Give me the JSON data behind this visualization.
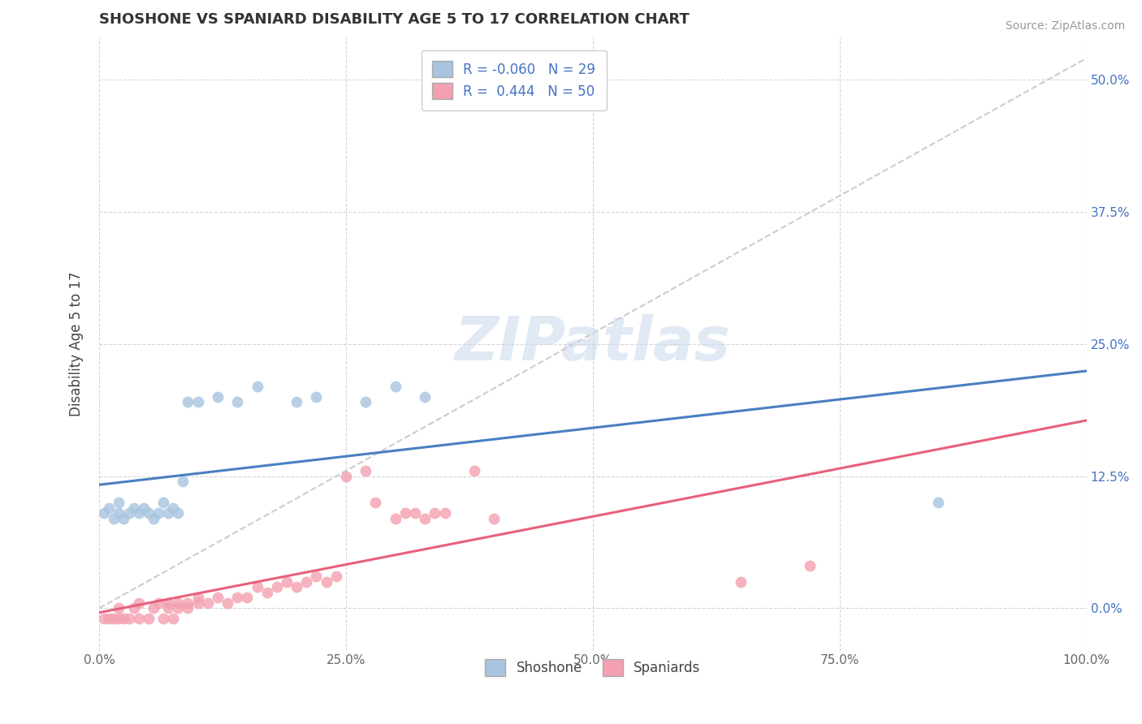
{
  "title": "SHOSHONE VS SPANIARD DISABILITY AGE 5 TO 17 CORRELATION CHART",
  "source_text": "Source: ZipAtlas.com",
  "ylabel": "Disability Age 5 to 17",
  "xlim": [
    0.0,
    1.0
  ],
  "ylim": [
    -0.04,
    0.54
  ],
  "xticks": [
    0.0,
    0.25,
    0.5,
    0.75,
    1.0
  ],
  "xticklabels": [
    "0.0%",
    "25.0%",
    "50.0%",
    "75.0%",
    "100.0%"
  ],
  "yticks": [
    0.0,
    0.125,
    0.25,
    0.375,
    0.5
  ],
  "yticklabels_right": [
    "0.0%",
    "12.5%",
    "25.0%",
    "37.5%",
    "50.0%"
  ],
  "watermark": "ZIPatlas",
  "shoshone_R": -0.06,
  "shoshone_N": 29,
  "spaniard_R": 0.444,
  "spaniard_N": 50,
  "shoshone_color": "#a8c4e0",
  "spaniard_color": "#f4a0b0",
  "shoshone_line_color": "#4a7fc1",
  "spaniard_line_color": "#e8607a",
  "background_color": "#ffffff",
  "grid_color": "#cccccc",
  "shoshone_x": [
    0.005,
    0.01,
    0.015,
    0.02,
    0.02,
    0.025,
    0.03,
    0.035,
    0.04,
    0.045,
    0.05,
    0.055,
    0.06,
    0.065,
    0.07,
    0.075,
    0.08,
    0.085,
    0.09,
    0.1,
    0.12,
    0.14,
    0.16,
    0.2,
    0.22,
    0.27,
    0.3,
    0.33,
    0.85
  ],
  "shoshone_y": [
    0.09,
    0.095,
    0.085,
    0.1,
    0.09,
    0.085,
    0.09,
    0.095,
    0.09,
    0.095,
    0.09,
    0.085,
    0.09,
    0.1,
    0.09,
    0.095,
    0.09,
    0.12,
    0.195,
    0.195,
    0.2,
    0.195,
    0.21,
    0.195,
    0.2,
    0.195,
    0.21,
    0.2,
    0.1
  ],
  "spaniard_x": [
    0.005,
    0.01,
    0.015,
    0.02,
    0.02,
    0.025,
    0.03,
    0.035,
    0.04,
    0.04,
    0.05,
    0.055,
    0.06,
    0.065,
    0.07,
    0.07,
    0.075,
    0.08,
    0.08,
    0.09,
    0.09,
    0.1,
    0.1,
    0.11,
    0.12,
    0.13,
    0.14,
    0.15,
    0.16,
    0.17,
    0.18,
    0.19,
    0.2,
    0.21,
    0.22,
    0.23,
    0.24,
    0.25,
    0.27,
    0.28,
    0.3,
    0.31,
    0.32,
    0.33,
    0.34,
    0.35,
    0.38,
    0.4,
    0.65,
    0.72
  ],
  "spaniard_y": [
    -0.01,
    -0.01,
    -0.01,
    -0.01,
    0.0,
    -0.01,
    -0.01,
    0.0,
    -0.01,
    0.005,
    -0.01,
    0.0,
    0.005,
    -0.01,
    0.0,
    0.005,
    -0.01,
    0.0,
    0.005,
    0.0,
    0.005,
    0.005,
    0.01,
    0.005,
    0.01,
    0.005,
    0.01,
    0.01,
    0.02,
    0.015,
    0.02,
    0.025,
    0.02,
    0.025,
    0.03,
    0.025,
    0.03,
    0.125,
    0.13,
    0.1,
    0.085,
    0.09,
    0.09,
    0.085,
    0.09,
    0.09,
    0.13,
    0.085,
    0.025,
    0.04
  ],
  "ref_line_x": [
    0.0,
    1.0
  ],
  "ref_line_y": [
    0.0,
    0.52
  ]
}
